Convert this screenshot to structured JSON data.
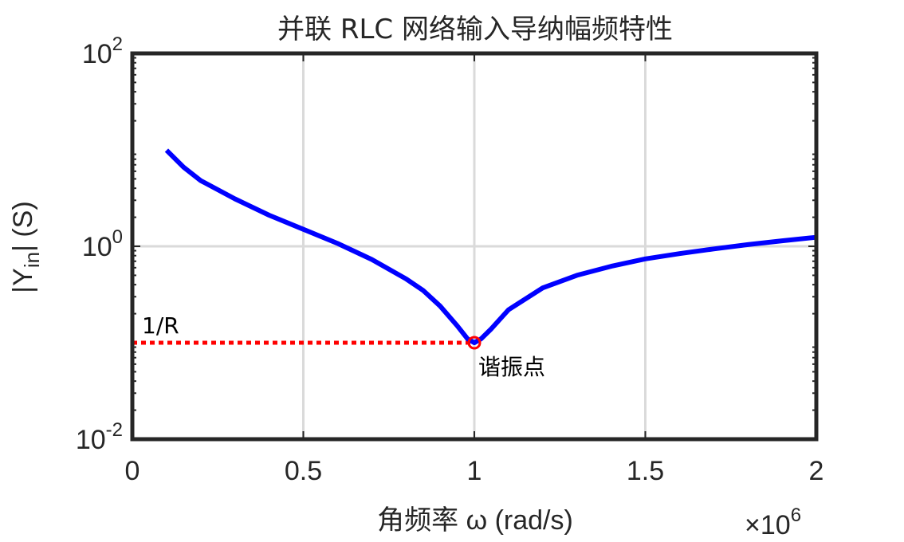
{
  "chart_data": {
    "type": "line",
    "title": "并联 RLC 网络输入导纳幅频特性",
    "xlabel": "角频率 ω (rad/s)",
    "ylabel_main": "|Y",
    "ylabel_sub": "in",
    "ylabel_tail": "| (S)",
    "x_scale_exponent": "6",
    "xlim": [
      0,
      2000000
    ],
    "ylim": [
      0.01,
      100
    ],
    "yscale": "log",
    "grid": true,
    "x_ticks": [
      {
        "value": 0,
        "label": "0"
      },
      {
        "value": 500000,
        "label": "0.5"
      },
      {
        "value": 1000000,
        "label": "1"
      },
      {
        "value": 1500000,
        "label": "1.5"
      },
      {
        "value": 2000000,
        "label": "2"
      }
    ],
    "y_ticks": [
      {
        "value": 0.01,
        "base": "10",
        "exp": "-2"
      },
      {
        "value": 1,
        "base": "10",
        "exp": "0"
      },
      {
        "value": 100,
        "base": "10",
        "exp": "2"
      }
    ],
    "series": [
      {
        "color": "#0000ff",
        "line_style": "solid",
        "x": [
          100000,
          150000,
          200000,
          300000,
          400000,
          500000,
          600000,
          700000,
          800000,
          850000,
          900000,
          950000,
          980000,
          1000000,
          1020000,
          1050000,
          1100000,
          1200000,
          1300000,
          1400000,
          1500000,
          1600000,
          1700000,
          1800000,
          1900000,
          2000000
        ],
        "y": [
          9.9,
          6.6,
          4.8,
          3.1,
          2.1,
          1.5,
          1.07,
          0.73,
          0.46,
          0.35,
          0.24,
          0.15,
          0.11,
          0.1,
          0.11,
          0.14,
          0.22,
          0.37,
          0.5,
          0.62,
          0.74,
          0.84,
          0.94,
          1.04,
          1.14,
          1.24
        ]
      }
    ],
    "reference_line": {
      "label": "1/R",
      "color": "#ff0000",
      "line_style": "dotted",
      "x": [
        0,
        1000000
      ],
      "y": [
        0.1,
        0.1
      ]
    },
    "marker": {
      "label": "谐振点",
      "color": "#ff0000",
      "shape": "circle",
      "x": 1000000,
      "y": 0.1
    }
  }
}
